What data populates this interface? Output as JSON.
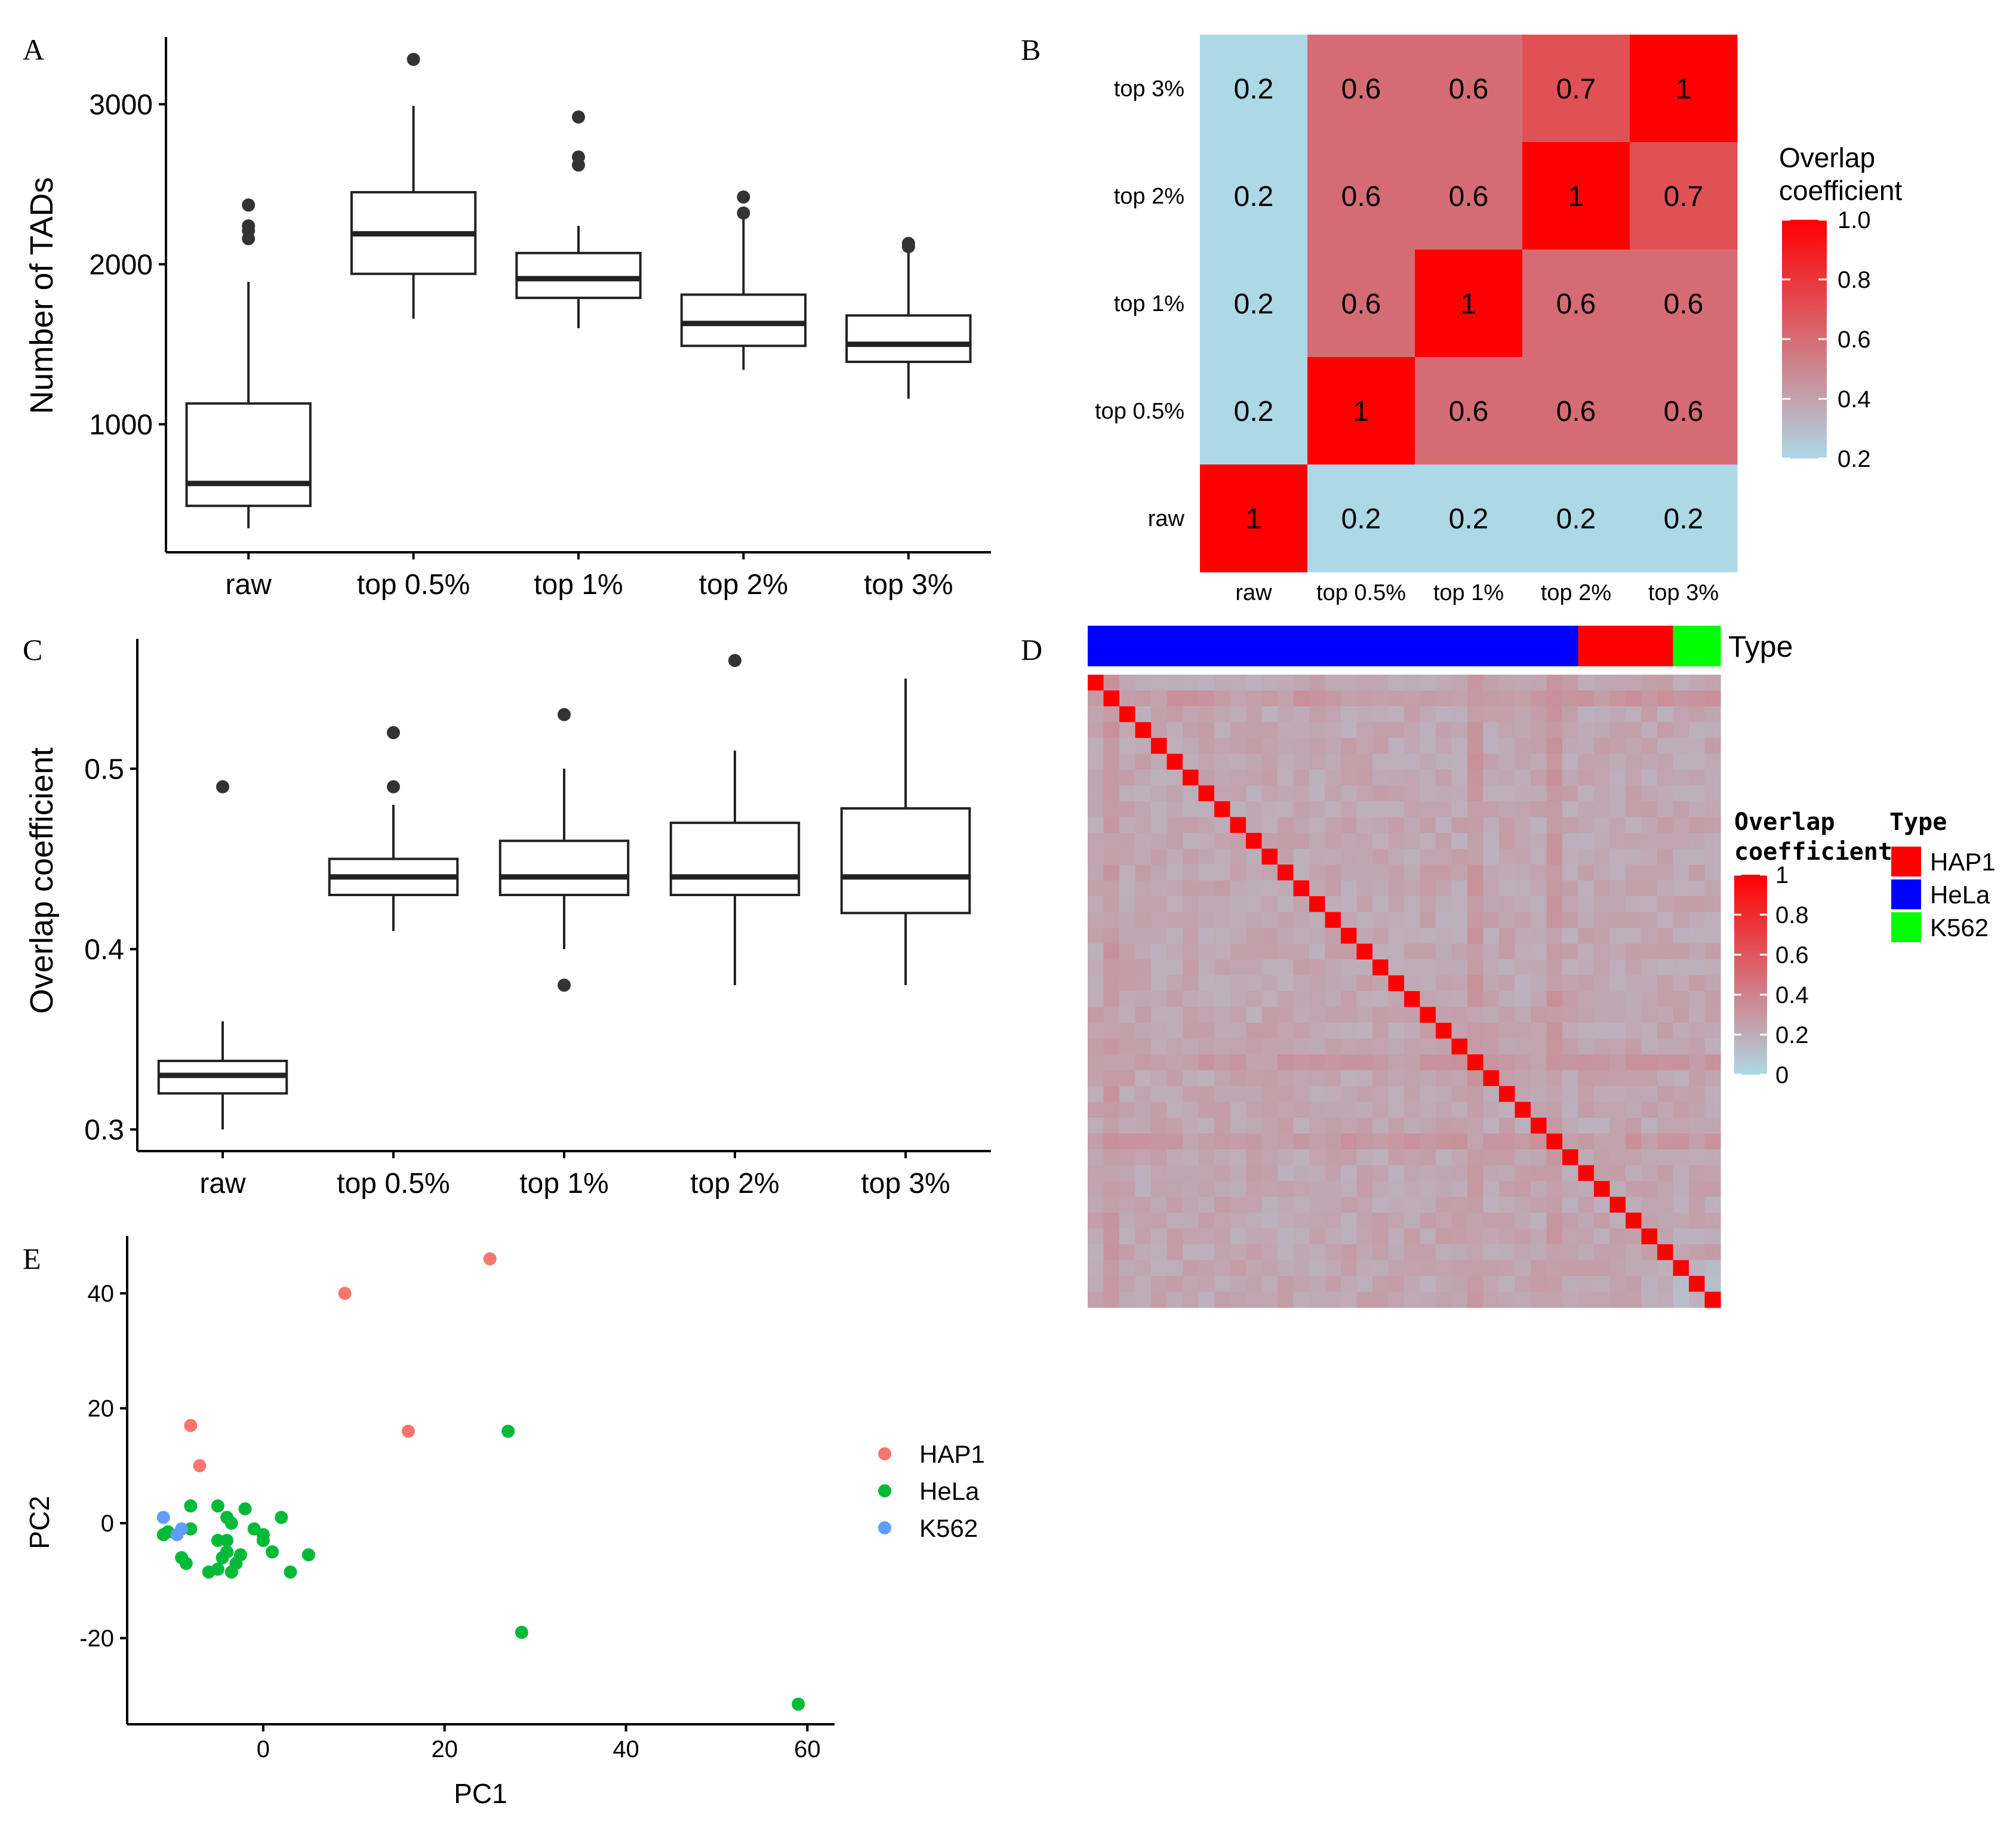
{
  "chart_data": [
    {
      "panel": "A",
      "type": "box",
      "categories": [
        "raw",
        "top 0.5%",
        "top 1%",
        "top 2%",
        "top 3%"
      ],
      "ylabel": "Number of TADs",
      "xlabel": "",
      "yticks": [
        "1000",
        "2000",
        "3000"
      ],
      "ytick_values": [
        1000,
        2000,
        3000
      ],
      "ylim": [
        200,
        3420
      ],
      "boxes": [
        {
          "wlo": 350,
          "q1": 490,
          "med": 630,
          "q3": 1130,
          "whi": 1890,
          "outliers": [
            2160,
            2210,
            2240,
            2370
          ]
        },
        {
          "wlo": 1660,
          "q1": 1940,
          "med": 2190,
          "q3": 2450,
          "whi": 2990,
          "outliers": [
            3280
          ]
        },
        {
          "wlo": 1600,
          "q1": 1790,
          "med": 1910,
          "q3": 2070,
          "whi": 2240,
          "outliers": [
            2620,
            2670,
            2920
          ]
        },
        {
          "wlo": 1340,
          "q1": 1490,
          "med": 1630,
          "q3": 1810,
          "whi": 2290,
          "outliers": [
            2320,
            2420
          ]
        },
        {
          "wlo": 1160,
          "q1": 1390,
          "med": 1500,
          "q3": 1680,
          "whi": 2070,
          "outliers": [
            2110,
            2130
          ]
        }
      ]
    },
    {
      "panel": "B",
      "type": "heatmap",
      "rows_top_to_bottom": [
        "top 3%",
        "top 2%",
        "top 1%",
        "top 0.5%",
        "raw"
      ],
      "cols": [
        "raw",
        "top 0.5%",
        "top 1%",
        "top 2%",
        "top 3%"
      ],
      "values": [
        [
          0.2,
          0.6,
          0.6,
          0.7,
          1
        ],
        [
          0.2,
          0.6,
          0.6,
          1,
          0.7
        ],
        [
          0.2,
          0.6,
          1,
          0.6,
          0.6
        ],
        [
          0.2,
          1,
          0.6,
          0.6,
          0.6
        ],
        [
          1,
          0.2,
          0.2,
          0.2,
          0.2
        ]
      ],
      "labels": [
        [
          "0.2",
          "0.6",
          "0.6",
          "0.7",
          "1"
        ],
        [
          "0.2",
          "0.6",
          "0.6",
          "1",
          "0.7"
        ],
        [
          "0.2",
          "0.6",
          "1",
          "0.6",
          "0.6"
        ],
        [
          "0.2",
          "1",
          "0.6",
          "0.6",
          "0.6"
        ],
        [
          "1",
          "0.2",
          "0.2",
          "0.2",
          "0.2"
        ]
      ],
      "legend_title": "Overlap\ncoefficient",
      "legend_ticks": [
        "1.0",
        "0.8",
        "0.6",
        "0.4",
        "0.2"
      ],
      "legend_tick_values": [
        1.0,
        0.8,
        0.6,
        0.4,
        0.2
      ],
      "scale": [
        0.2,
        1.0
      ],
      "low_color": "#add8e6",
      "high_color": "#ff0000"
    },
    {
      "panel": "C",
      "type": "box",
      "categories": [
        "raw",
        "top 0.5%",
        "top 1%",
        "top 2%",
        "top 3%"
      ],
      "ylabel": "Overlap coefficient",
      "xlabel": "",
      "yticks": [
        "0.3",
        "0.4",
        "0.5"
      ],
      "ytick_values": [
        0.3,
        0.4,
        0.5
      ],
      "ylim": [
        0.288,
        0.572
      ],
      "boxes": [
        {
          "wlo": 0.3,
          "q1": 0.32,
          "med": 0.33,
          "q3": 0.338,
          "whi": 0.36,
          "outliers": [
            0.49
          ]
        },
        {
          "wlo": 0.41,
          "q1": 0.43,
          "med": 0.44,
          "q3": 0.45,
          "whi": 0.48,
          "outliers": [
            0.49,
            0.52
          ]
        },
        {
          "wlo": 0.4,
          "q1": 0.43,
          "med": 0.44,
          "q3": 0.46,
          "whi": 0.5,
          "outliers": [
            0.38,
            0.53
          ]
        },
        {
          "wlo": 0.38,
          "q1": 0.43,
          "med": 0.44,
          "q3": 0.47,
          "whi": 0.51,
          "outliers": [
            0.56
          ]
        },
        {
          "wlo": 0.38,
          "q1": 0.42,
          "med": 0.44,
          "q3": 0.478,
          "whi": 0.55,
          "outliers": []
        }
      ]
    },
    {
      "panel": "D",
      "type": "heatmap",
      "n": 40,
      "annotation_title": "Type",
      "annotation_groups": [
        {
          "name": "HeLa",
          "count": 31,
          "color": "#0000ff"
        },
        {
          "name": "HAP1",
          "count": 6,
          "color": "#ff0000"
        },
        {
          "name": "K562",
          "count": 3,
          "color": "#00ff00"
        }
      ],
      "legend_title_1": "Overlap",
      "legend_title_2": "coefficient",
      "legend_ticks": [
        "1",
        "0.8",
        "0.6",
        "0.4",
        "0.2",
        "0"
      ],
      "legend_tick_values": [
        1,
        0.8,
        0.6,
        0.4,
        0.2,
        0
      ],
      "type_legend_title": "Type",
      "type_legend": [
        {
          "name": "HAP1",
          "color": "#ff0000"
        },
        {
          "name": "HeLa",
          "color": "#0000ff"
        },
        {
          "name": "K562",
          "color": "#00ff00"
        }
      ],
      "diagonal_value": 1,
      "offdiag_value_approx": 0.2,
      "low_color": "#add8e6",
      "high_color": "#ff0000"
    },
    {
      "panel": "E",
      "type": "scatter",
      "xlabel": "PC1",
      "ylabel": "PC2",
      "xticks": [
        "0",
        "20",
        "40",
        "60"
      ],
      "xtick_values": [
        0,
        20,
        40,
        60
      ],
      "yticks": [
        "-20",
        "0",
        "20",
        "40"
      ],
      "ytick_values": [
        -20,
        0,
        20,
        40
      ],
      "xlim": [
        -15,
        63
      ],
      "ylim": [
        -35,
        50
      ],
      "series": [
        {
          "name": "HAP1",
          "color": "#f8766d",
          "points": [
            [
              25,
              46
            ],
            [
              9,
              40
            ],
            [
              -8,
              17
            ],
            [
              16,
              16
            ],
            [
              -7,
              10
            ],
            [
              -4,
              -5
            ]
          ]
        },
        {
          "name": "HeLa",
          "color": "#00ba38",
          "points": [
            [
              27,
              16
            ],
            [
              -8,
              3
            ],
            [
              -5,
              3
            ],
            [
              -2,
              2.5
            ],
            [
              -4,
              1
            ],
            [
              -1,
              -1
            ],
            [
              2,
              1
            ],
            [
              -3.5,
              0
            ],
            [
              0,
              -2
            ],
            [
              -11,
              -2
            ],
            [
              -8,
              -1
            ],
            [
              -5,
              -3
            ],
            [
              -4,
              -3
            ],
            [
              -10.5,
              -1.5
            ],
            [
              0,
              -3
            ],
            [
              1,
              -5
            ],
            [
              5,
              -5.5
            ],
            [
              -4.5,
              -6
            ],
            [
              -9,
              -6
            ],
            [
              -3,
              -7
            ],
            [
              -8.5,
              -7
            ],
            [
              -5,
              -8
            ],
            [
              -6,
              -8.5
            ],
            [
              -3.5,
              -8.5
            ],
            [
              3,
              -8.5
            ],
            [
              -4,
              -5
            ],
            [
              -2.5,
              -5.5
            ],
            [
              28.5,
              -19
            ],
            [
              59,
              -31.5
            ]
          ]
        },
        {
          "name": "K562",
          "color": "#619cff",
          "points": [
            [
              -11,
              1
            ],
            [
              -9,
              -1
            ],
            [
              -9.5,
              -2
            ]
          ]
        }
      ]
    }
  ],
  "panel_labels": [
    "A",
    "B",
    "C",
    "D",
    "E"
  ]
}
